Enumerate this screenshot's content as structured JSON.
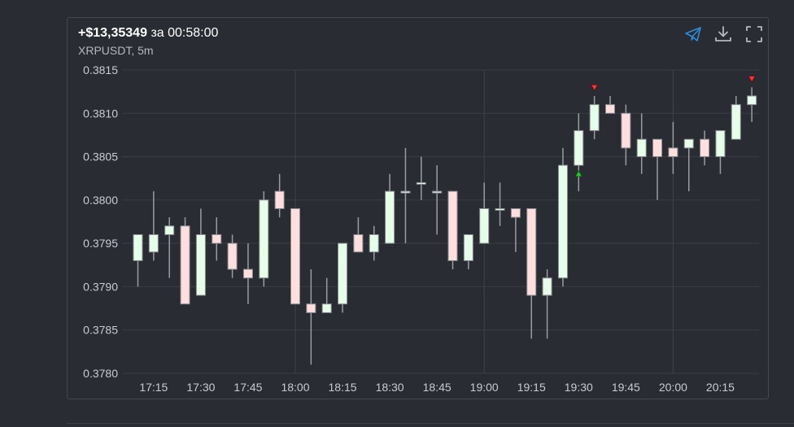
{
  "header": {
    "pnl": "+$13,35349",
    "duration_text": "за 00:58:00",
    "subtitle": "XRPUSDT, 5m"
  },
  "toolbar": {
    "share_icon": "telegram-send-icon",
    "download_icon": "download-icon",
    "fullscreen_icon": "fullscreen-icon",
    "accent_color": "#2e8bd8"
  },
  "chart_data": {
    "type": "candlestick",
    "title": "",
    "xlabel": "",
    "ylabel": "",
    "ylim": [
      0.378,
      0.3815
    ],
    "yticks": [
      "0.3815",
      "0.3810",
      "0.3805",
      "0.3800",
      "0.3795",
      "0.3790",
      "0.3785",
      "0.3780"
    ],
    "xticks": [
      "17:15",
      "17:30",
      "17:45",
      "18:00",
      "18:15",
      "18:30",
      "18:45",
      "19:00",
      "19:15",
      "19:30",
      "19:45",
      "20:00",
      "20:15"
    ],
    "grid": true,
    "colors": {
      "up": "#e6ffe9",
      "down": "#ffdede",
      "wick": "#9a9ca2",
      "buy_marker": "#22cc22",
      "sell_marker": "#ff3333"
    },
    "candles": [
      {
        "time": "17:10",
        "open": 0.3793,
        "high": 0.3796,
        "low": 0.379,
        "close": 0.3796
      },
      {
        "time": "17:15",
        "open": 0.3794,
        "high": 0.3801,
        "low": 0.3793,
        "close": 0.3796
      },
      {
        "time": "17:20",
        "open": 0.3796,
        "high": 0.3798,
        "low": 0.3791,
        "close": 0.3797
      },
      {
        "time": "17:25",
        "open": 0.3797,
        "high": 0.3798,
        "low": 0.3788,
        "close": 0.3788
      },
      {
        "time": "17:30",
        "open": 0.3789,
        "high": 0.3799,
        "low": 0.3789,
        "close": 0.3796
      },
      {
        "time": "17:35",
        "open": 0.3796,
        "high": 0.3798,
        "low": 0.3793,
        "close": 0.3795
      },
      {
        "time": "17:40",
        "open": 0.3795,
        "high": 0.3796,
        "low": 0.3791,
        "close": 0.3792
      },
      {
        "time": "17:45",
        "open": 0.3792,
        "high": 0.3795,
        "low": 0.3788,
        "close": 0.3791
      },
      {
        "time": "17:50",
        "open": 0.3791,
        "high": 0.3801,
        "low": 0.379,
        "close": 0.38
      },
      {
        "time": "17:55",
        "open": 0.3801,
        "high": 0.3803,
        "low": 0.3798,
        "close": 0.3799
      },
      {
        "time": "18:00",
        "open": 0.3799,
        "high": 0.3799,
        "low": 0.3788,
        "close": 0.3788
      },
      {
        "time": "18:05",
        "open": 0.3788,
        "high": 0.3792,
        "low": 0.3781,
        "close": 0.3787
      },
      {
        "time": "18:10",
        "open": 0.3787,
        "high": 0.3791,
        "low": 0.3787,
        "close": 0.3788
      },
      {
        "time": "18:15",
        "open": 0.3788,
        "high": 0.3795,
        "low": 0.3787,
        "close": 0.3795
      },
      {
        "time": "18:20",
        "open": 0.3796,
        "high": 0.3798,
        "low": 0.3794,
        "close": 0.3794
      },
      {
        "time": "18:25",
        "open": 0.3794,
        "high": 0.3797,
        "low": 0.3793,
        "close": 0.3796
      },
      {
        "time": "18:30",
        "open": 0.3795,
        "high": 0.3803,
        "low": 0.3795,
        "close": 0.3801
      },
      {
        "time": "18:35",
        "open": 0.3801,
        "high": 0.3806,
        "low": 0.3795,
        "close": 0.3801
      },
      {
        "time": "18:40",
        "open": 0.3802,
        "high": 0.3805,
        "low": 0.38,
        "close": 0.3802
      },
      {
        "time": "18:45",
        "open": 0.3801,
        "high": 0.3804,
        "low": 0.3796,
        "close": 0.3801
      },
      {
        "time": "18:50",
        "open": 0.3801,
        "high": 0.3801,
        "low": 0.3792,
        "close": 0.3793
      },
      {
        "time": "18:55",
        "open": 0.3793,
        "high": 0.3796,
        "low": 0.3792,
        "close": 0.3796
      },
      {
        "time": "19:00",
        "open": 0.3795,
        "high": 0.3802,
        "low": 0.3795,
        "close": 0.3799
      },
      {
        "time": "19:05",
        "open": 0.3799,
        "high": 0.3802,
        "low": 0.3797,
        "close": 0.3799
      },
      {
        "time": "19:10",
        "open": 0.3799,
        "high": 0.3799,
        "low": 0.3794,
        "close": 0.3798
      },
      {
        "time": "19:15",
        "open": 0.3799,
        "high": 0.3799,
        "low": 0.3784,
        "close": 0.3789
      },
      {
        "time": "19:20",
        "open": 0.3789,
        "high": 0.3792,
        "low": 0.3784,
        "close": 0.3791
      },
      {
        "time": "19:25",
        "open": 0.3791,
        "high": 0.3806,
        "low": 0.379,
        "close": 0.3804
      },
      {
        "time": "19:30",
        "open": 0.3804,
        "high": 0.381,
        "low": 0.3801,
        "close": 0.3808
      },
      {
        "time": "19:35",
        "open": 0.3808,
        "high": 0.3812,
        "low": 0.3807,
        "close": 0.3811
      },
      {
        "time": "19:40",
        "open": 0.3811,
        "high": 0.3812,
        "low": 0.381,
        "close": 0.381
      },
      {
        "time": "19:45",
        "open": 0.381,
        "high": 0.3811,
        "low": 0.3804,
        "close": 0.3806
      },
      {
        "time": "19:50",
        "open": 0.3805,
        "high": 0.381,
        "low": 0.3803,
        "close": 0.3807
      },
      {
        "time": "19:55",
        "open": 0.3807,
        "high": 0.3807,
        "low": 0.38,
        "close": 0.3805
      },
      {
        "time": "20:00",
        "open": 0.3806,
        "high": 0.3809,
        "low": 0.3803,
        "close": 0.3805
      },
      {
        "time": "20:05",
        "open": 0.3806,
        "high": 0.3807,
        "low": 0.3801,
        "close": 0.3807
      },
      {
        "time": "20:10",
        "open": 0.3807,
        "high": 0.3808,
        "low": 0.3804,
        "close": 0.3805
      },
      {
        "time": "20:15",
        "open": 0.3805,
        "high": 0.3808,
        "low": 0.3803,
        "close": 0.3808
      },
      {
        "time": "20:20",
        "open": 0.3807,
        "high": 0.3812,
        "low": 0.3807,
        "close": 0.3811
      },
      {
        "time": "20:25",
        "open": 0.3811,
        "high": 0.3813,
        "low": 0.3809,
        "close": 0.3812
      }
    ],
    "markers": [
      {
        "type": "buy",
        "time": "19:30",
        "price": 0.3803
      },
      {
        "type": "sell",
        "time": "19:35",
        "price": 0.3813
      },
      {
        "type": "sell",
        "time": "20:25",
        "price": 0.3814
      }
    ]
  }
}
